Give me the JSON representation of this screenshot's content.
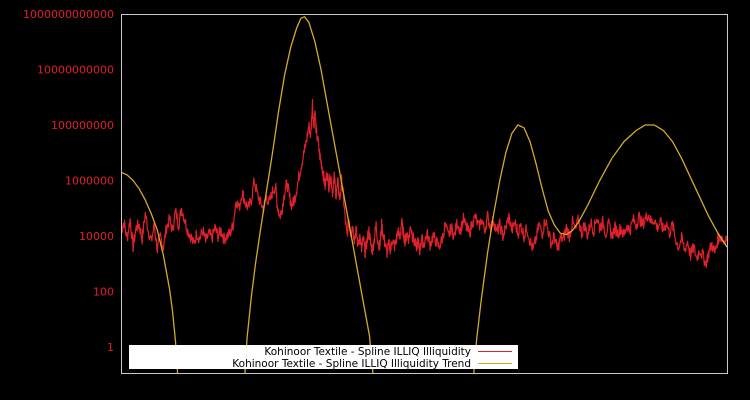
{
  "chart_data": {
    "type": "line",
    "title": "",
    "xlabel": "",
    "ylabel": "",
    "yscale": "log",
    "ylim": [
      0.1,
      1000000000000
    ],
    "grid": false,
    "legend_position": "bottom-left inside",
    "y_ticks": [
      {
        "label": "1000000000000",
        "value": 1000000000000.0
      },
      {
        "label": "10000000000",
        "value": 10000000000.0
      },
      {
        "label": "100000000",
        "value": 100000000.0
      },
      {
        "label": "1000000",
        "value": 1000000.0
      },
      {
        "label": "10000",
        "value": 10000.0
      },
      {
        "label": "100",
        "value": 100
      },
      {
        "label": "1",
        "value": 1
      }
    ],
    "x_ticks": [],
    "series": [
      {
        "name": "Kohinoor Textile - Spline ILLIQ Illiquidity",
        "color": "#e0202a",
        "note": "x is fraction of plot width (0..1), log10y is log10 of the illiquidity value",
        "points": [
          [
            0.0,
            4.2
          ],
          [
            0.005,
            4.5
          ],
          [
            0.01,
            3.9
          ],
          [
            0.015,
            4.6
          ],
          [
            0.02,
            3.6
          ],
          [
            0.025,
            4.3
          ],
          [
            0.03,
            4.4
          ],
          [
            0.035,
            3.9
          ],
          [
            0.04,
            4.8
          ],
          [
            0.045,
            4.2
          ],
          [
            0.05,
            3.8
          ],
          [
            0.055,
            4.4
          ],
          [
            0.06,
            3.5
          ],
          [
            0.065,
            4.0
          ],
          [
            0.07,
            3.6
          ],
          [
            0.075,
            4.3
          ],
          [
            0.08,
            4.6
          ],
          [
            0.085,
            4.2
          ],
          [
            0.09,
            4.9
          ],
          [
            0.095,
            4.4
          ],
          [
            0.1,
            5.0
          ],
          [
            0.105,
            4.6
          ],
          [
            0.11,
            4.2
          ],
          [
            0.115,
            4.0
          ],
          [
            0.12,
            3.7
          ],
          [
            0.125,
            4.1
          ],
          [
            0.13,
            3.9
          ],
          [
            0.135,
            4.2
          ],
          [
            0.14,
            3.8
          ],
          [
            0.145,
            4.1
          ],
          [
            0.15,
            3.9
          ],
          [
            0.155,
            4.3
          ],
          [
            0.16,
            4.0
          ],
          [
            0.165,
            4.2
          ],
          [
            0.17,
            3.9
          ],
          [
            0.175,
            4.0
          ],
          [
            0.18,
            4.1
          ],
          [
            0.185,
            4.4
          ],
          [
            0.19,
            5.3
          ],
          [
            0.195,
            5.0
          ],
          [
            0.2,
            5.6
          ],
          [
            0.205,
            5.2
          ],
          [
            0.21,
            5.0
          ],
          [
            0.215,
            5.3
          ],
          [
            0.22,
            6.0
          ],
          [
            0.225,
            5.5
          ],
          [
            0.23,
            5.2
          ],
          [
            0.235,
            5.0
          ],
          [
            0.24,
            5.4
          ],
          [
            0.245,
            5.2
          ],
          [
            0.25,
            5.6
          ],
          [
            0.255,
            5.8
          ],
          [
            0.258,
            5.1
          ],
          [
            0.262,
            4.7
          ],
          [
            0.266,
            5.0
          ],
          [
            0.27,
            5.6
          ],
          [
            0.274,
            5.9
          ],
          [
            0.278,
            5.4
          ],
          [
            0.282,
            5.1
          ],
          [
            0.286,
            5.3
          ],
          [
            0.29,
            5.7
          ],
          [
            0.294,
            6.2
          ],
          [
            0.298,
            6.6
          ],
          [
            0.302,
            7.0
          ],
          [
            0.306,
            7.4
          ],
          [
            0.31,
            8.0
          ],
          [
            0.313,
            7.6
          ],
          [
            0.316,
            8.8
          ],
          [
            0.318,
            7.9
          ],
          [
            0.32,
            8.5
          ],
          [
            0.322,
            7.8
          ],
          [
            0.325,
            7.4
          ],
          [
            0.328,
            6.9
          ],
          [
            0.331,
            6.6
          ],
          [
            0.334,
            6.2
          ],
          [
            0.337,
            5.8
          ],
          [
            0.34,
            6.3
          ],
          [
            0.343,
            5.8
          ],
          [
            0.346,
            6.2
          ],
          [
            0.349,
            5.6
          ],
          [
            0.352,
            6.1
          ],
          [
            0.355,
            5.5
          ],
          [
            0.358,
            5.9
          ],
          [
            0.361,
            5.3
          ],
          [
            0.364,
            6.0
          ],
          [
            0.367,
            5.4
          ],
          [
            0.37,
            4.6
          ],
          [
            0.373,
            4.0
          ],
          [
            0.376,
            4.6
          ],
          [
            0.379,
            4.1
          ],
          [
            0.382,
            4.4
          ],
          [
            0.385,
            3.9
          ],
          [
            0.388,
            4.2
          ],
          [
            0.391,
            3.7
          ],
          [
            0.394,
            4.0
          ],
          [
            0.397,
            3.5
          ],
          [
            0.4,
            3.9
          ],
          [
            0.403,
            3.4
          ],
          [
            0.406,
            3.8
          ],
          [
            0.409,
            4.2
          ],
          [
            0.412,
            3.7
          ],
          [
            0.415,
            3.5
          ],
          [
            0.418,
            3.9
          ],
          [
            0.421,
            4.4
          ],
          [
            0.424,
            3.8
          ],
          [
            0.427,
            3.6
          ],
          [
            0.43,
            4.4
          ],
          [
            0.433,
            4.0
          ],
          [
            0.436,
            3.7
          ],
          [
            0.439,
            3.4
          ],
          [
            0.442,
            3.7
          ],
          [
            0.445,
            3.5
          ],
          [
            0.448,
            3.9
          ],
          [
            0.451,
            3.6
          ],
          [
            0.454,
            3.8
          ],
          [
            0.457,
            4.2
          ],
          [
            0.46,
            3.9
          ],
          [
            0.463,
            4.5
          ],
          [
            0.466,
            4.1
          ],
          [
            0.469,
            3.8
          ],
          [
            0.472,
            4.1
          ],
          [
            0.475,
            3.9
          ],
          [
            0.478,
            4.4
          ],
          [
            0.481,
            4.0
          ],
          [
            0.484,
            3.8
          ],
          [
            0.487,
            3.6
          ],
          [
            0.49,
            3.8
          ],
          [
            0.493,
            3.5
          ],
          [
            0.496,
            3.9
          ],
          [
            0.5,
            3.7
          ],
          [
            0.505,
            4.1
          ],
          [
            0.51,
            3.7
          ],
          [
            0.515,
            4.0
          ],
          [
            0.52,
            3.8
          ],
          [
            0.525,
            3.6
          ],
          [
            0.53,
            3.9
          ],
          [
            0.535,
            4.4
          ],
          [
            0.54,
            4.0
          ],
          [
            0.545,
            4.3
          ],
          [
            0.55,
            4.0
          ],
          [
            0.555,
            4.5
          ],
          [
            0.56,
            4.2
          ],
          [
            0.565,
            4.6
          ],
          [
            0.57,
            4.3
          ],
          [
            0.575,
            4.1
          ],
          [
            0.58,
            4.5
          ],
          [
            0.585,
            4.7
          ],
          [
            0.59,
            4.3
          ],
          [
            0.595,
            4.6
          ],
          [
            0.6,
            4.2
          ],
          [
            0.605,
            4.7
          ],
          [
            0.61,
            4.3
          ],
          [
            0.615,
            4.6
          ],
          [
            0.62,
            4.1
          ],
          [
            0.625,
            4.4
          ],
          [
            0.63,
            4.0
          ],
          [
            0.635,
            4.3
          ],
          [
            0.64,
            4.7
          ],
          [
            0.645,
            4.2
          ],
          [
            0.65,
            4.5
          ],
          [
            0.655,
            4.1
          ],
          [
            0.66,
            4.4
          ],
          [
            0.665,
            4.0
          ],
          [
            0.67,
            4.3
          ],
          [
            0.675,
            3.8
          ],
          [
            0.68,
            3.5
          ],
          [
            0.685,
            3.9
          ],
          [
            0.69,
            4.4
          ],
          [
            0.695,
            4.1
          ],
          [
            0.7,
            4.6
          ],
          [
            0.705,
            4.2
          ],
          [
            0.71,
            3.7
          ],
          [
            0.715,
            4.0
          ],
          [
            0.72,
            3.5
          ],
          [
            0.725,
            3.9
          ],
          [
            0.73,
            3.9
          ],
          [
            0.735,
            4.3
          ],
          [
            0.74,
            4.0
          ],
          [
            0.745,
            4.5
          ],
          [
            0.75,
            4.2
          ],
          [
            0.755,
            4.6
          ],
          [
            0.76,
            4.1
          ],
          [
            0.765,
            4.4
          ],
          [
            0.77,
            4.0
          ],
          [
            0.775,
            4.5
          ],
          [
            0.78,
            4.2
          ],
          [
            0.785,
            4.7
          ],
          [
            0.79,
            4.3
          ],
          [
            0.795,
            4.5
          ],
          [
            0.8,
            4.1
          ],
          [
            0.805,
            4.4
          ],
          [
            0.81,
            4.0
          ],
          [
            0.815,
            4.3
          ],
          [
            0.82,
            4.1
          ],
          [
            0.825,
            4.3
          ],
          [
            0.83,
            4.0
          ],
          [
            0.835,
            4.4
          ],
          [
            0.84,
            4.2
          ],
          [
            0.845,
            4.6
          ],
          [
            0.85,
            4.4
          ],
          [
            0.855,
            4.7
          ],
          [
            0.86,
            4.4
          ],
          [
            0.865,
            4.6
          ],
          [
            0.87,
            4.8
          ],
          [
            0.875,
            4.5
          ],
          [
            0.88,
            4.6
          ],
          [
            0.885,
            4.3
          ],
          [
            0.89,
            4.5
          ],
          [
            0.895,
            4.2
          ],
          [
            0.9,
            4.5
          ],
          [
            0.905,
            4.1
          ],
          [
            0.91,
            4.4
          ],
          [
            0.915,
            3.9
          ],
          [
            0.92,
            3.6
          ],
          [
            0.925,
            3.9
          ],
          [
            0.93,
            3.5
          ],
          [
            0.935,
            3.8
          ],
          [
            0.94,
            3.3
          ],
          [
            0.945,
            3.6
          ],
          [
            0.95,
            3.2
          ],
          [
            0.955,
            3.5
          ],
          [
            0.96,
            3.3
          ],
          [
            0.965,
            3.0
          ],
          [
            0.97,
            3.4
          ],
          [
            0.975,
            3.7
          ],
          [
            0.98,
            3.4
          ],
          [
            0.985,
            3.9
          ],
          [
            0.99,
            4.0
          ],
          [
            0.995,
            3.8
          ],
          [
            1.0,
            4.0
          ]
        ]
      },
      {
        "name": "Kohinoor Textile - Spline ILLIQ Illiquidity Trend",
        "color": "#d4aa2a",
        "note": "x is fraction of plot width (0..1), log10y is log10 of trend value",
        "points": [
          [
            0.0,
            6.3
          ],
          [
            0.01,
            6.2
          ],
          [
            0.02,
            6.0
          ],
          [
            0.03,
            5.7
          ],
          [
            0.04,
            5.3
          ],
          [
            0.05,
            4.8
          ],
          [
            0.06,
            4.2
          ],
          [
            0.07,
            3.3
          ],
          [
            0.08,
            2.1
          ],
          [
            0.085,
            1.3
          ],
          [
            0.09,
            0.2
          ],
          [
            0.095,
            -1.5
          ],
          [
            0.203,
            -1.5
          ],
          [
            0.208,
            0.3
          ],
          [
            0.215,
            1.8
          ],
          [
            0.222,
            3.0
          ],
          [
            0.23,
            4.2
          ],
          [
            0.24,
            5.6
          ],
          [
            0.25,
            7.0
          ],
          [
            0.26,
            8.5
          ],
          [
            0.27,
            9.8
          ],
          [
            0.28,
            10.8
          ],
          [
            0.29,
            11.5
          ],
          [
            0.297,
            11.85
          ],
          [
            0.303,
            11.9
          ],
          [
            0.31,
            11.7
          ],
          [
            0.32,
            11.0
          ],
          [
            0.33,
            10.0
          ],
          [
            0.34,
            8.8
          ],
          [
            0.35,
            7.6
          ],
          [
            0.36,
            6.4
          ],
          [
            0.37,
            5.2
          ],
          [
            0.38,
            4.0
          ],
          [
            0.39,
            2.8
          ],
          [
            0.4,
            1.6
          ],
          [
            0.41,
            0.4
          ],
          [
            0.418,
            -1.5
          ],
          [
            0.58,
            -1.5
          ],
          [
            0.587,
            0.3
          ],
          [
            0.595,
            1.8
          ],
          [
            0.605,
            3.4
          ],
          [
            0.615,
            4.8
          ],
          [
            0.625,
            6.0
          ],
          [
            0.635,
            7.0
          ],
          [
            0.645,
            7.7
          ],
          [
            0.655,
            8.0
          ],
          [
            0.665,
            7.9
          ],
          [
            0.675,
            7.4
          ],
          [
            0.685,
            6.6
          ],
          [
            0.695,
            5.7
          ],
          [
            0.705,
            4.9
          ],
          [
            0.715,
            4.4
          ],
          [
            0.725,
            4.1
          ],
          [
            0.735,
            4.05
          ],
          [
            0.745,
            4.2
          ],
          [
            0.755,
            4.5
          ],
          [
            0.77,
            5.1
          ],
          [
            0.79,
            6.0
          ],
          [
            0.81,
            6.8
          ],
          [
            0.83,
            7.4
          ],
          [
            0.85,
            7.8
          ],
          [
            0.865,
            8.0
          ],
          [
            0.88,
            8.0
          ],
          [
            0.895,
            7.8
          ],
          [
            0.91,
            7.4
          ],
          [
            0.925,
            6.8
          ],
          [
            0.94,
            6.1
          ],
          [
            0.955,
            5.4
          ],
          [
            0.97,
            4.7
          ],
          [
            0.985,
            4.1
          ],
          [
            1.0,
            3.6
          ]
        ]
      }
    ]
  },
  "legend": {
    "items": [
      {
        "label": "Kohinoor Textile - Spline ILLIQ Illiquidity",
        "color": "#e0202a"
      },
      {
        "label": "Kohinoor Textile - Spline ILLIQ Illiquidity Trend",
        "color": "#d4aa2a"
      }
    ]
  },
  "colors": {
    "background": "#000000",
    "axis": "#c8c8c8",
    "tick_label": "#e0202a",
    "legend_bg": "#ffffff"
  }
}
